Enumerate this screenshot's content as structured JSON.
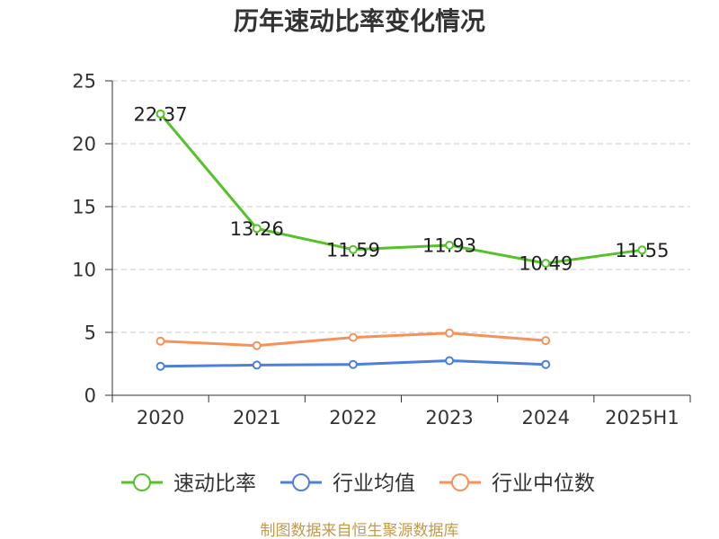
{
  "footer": "制图数据来自恒生聚源数据库",
  "chart_data": {
    "type": "line",
    "title": "历年速动比率变化情况",
    "categories": [
      "2020",
      "2021",
      "2022",
      "2023",
      "2024",
      "2025H1"
    ],
    "ylim": [
      0,
      25
    ],
    "yticks": [
      0,
      5,
      10,
      15,
      20,
      25
    ],
    "grid": true,
    "legend_position": "bottom",
    "series": [
      {
        "name": "速动比率",
        "color": "#55c22a",
        "data_labels": true,
        "values": [
          22.37,
          13.26,
          11.59,
          11.93,
          10.49,
          11.55
        ]
      },
      {
        "name": "行业均值",
        "color": "#4d7fdb",
        "data_labels": false,
        "values": [
          2.3,
          2.4,
          2.45,
          2.75,
          2.45,
          null
        ]
      },
      {
        "name": "行业中位数",
        "color": "#f69157",
        "data_labels": false,
        "values": [
          4.3,
          3.95,
          4.6,
          4.95,
          4.35,
          null
        ]
      }
    ]
  }
}
